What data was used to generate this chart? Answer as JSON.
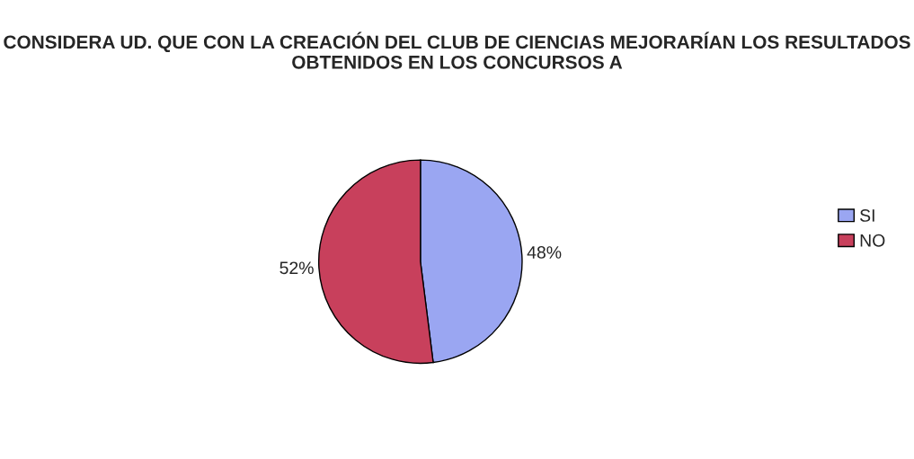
{
  "chart_data": {
    "type": "pie",
    "title": "CONSIDERA UD. QUE CON LA CREACIÓN DEL CLUB DE CIENCIAS MEJORARÍAN LOS RESULTADOS OBTENIDOS EN LOS CONCURSOS A",
    "categories": [
      "SI",
      "NO"
    ],
    "values": [
      48,
      52
    ],
    "colors": [
      "#9aa6f2",
      "#c8405c"
    ],
    "value_labels": [
      "48%",
      "52%"
    ],
    "legend": "right"
  }
}
